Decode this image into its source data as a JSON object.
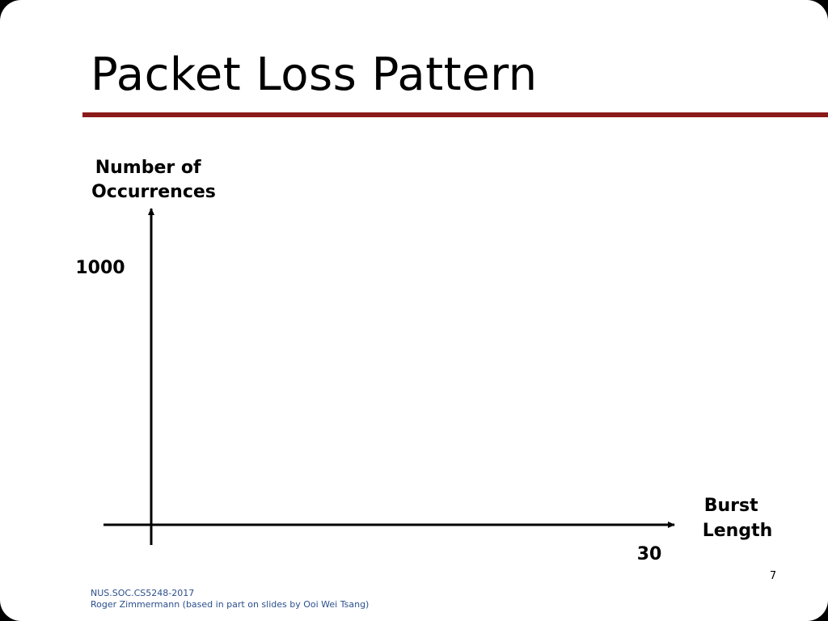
{
  "slide": {
    "title": "Packet Loss Pattern",
    "page_number": "7",
    "footer": {
      "line1": "NUS.SOC.CS5248-2017",
      "line2": "Roger Zimmermann (based in part on slides by Ooi Wei Tsang)"
    },
    "colors": {
      "rule": "#8b1a1a",
      "footer_text": "#2b4f8c"
    }
  },
  "chart_data": {
    "type": "line",
    "title": "",
    "ylabel_lines": [
      "Number of",
      "Occurrences"
    ],
    "xlabel_lines": [
      "Burst",
      "Length"
    ],
    "y_tick_label": "1000",
    "x_tick_label": "30",
    "xlim": [
      0,
      30
    ],
    "ylim": [
      0,
      1000
    ],
    "series": [],
    "grid": false,
    "legend": "none"
  }
}
